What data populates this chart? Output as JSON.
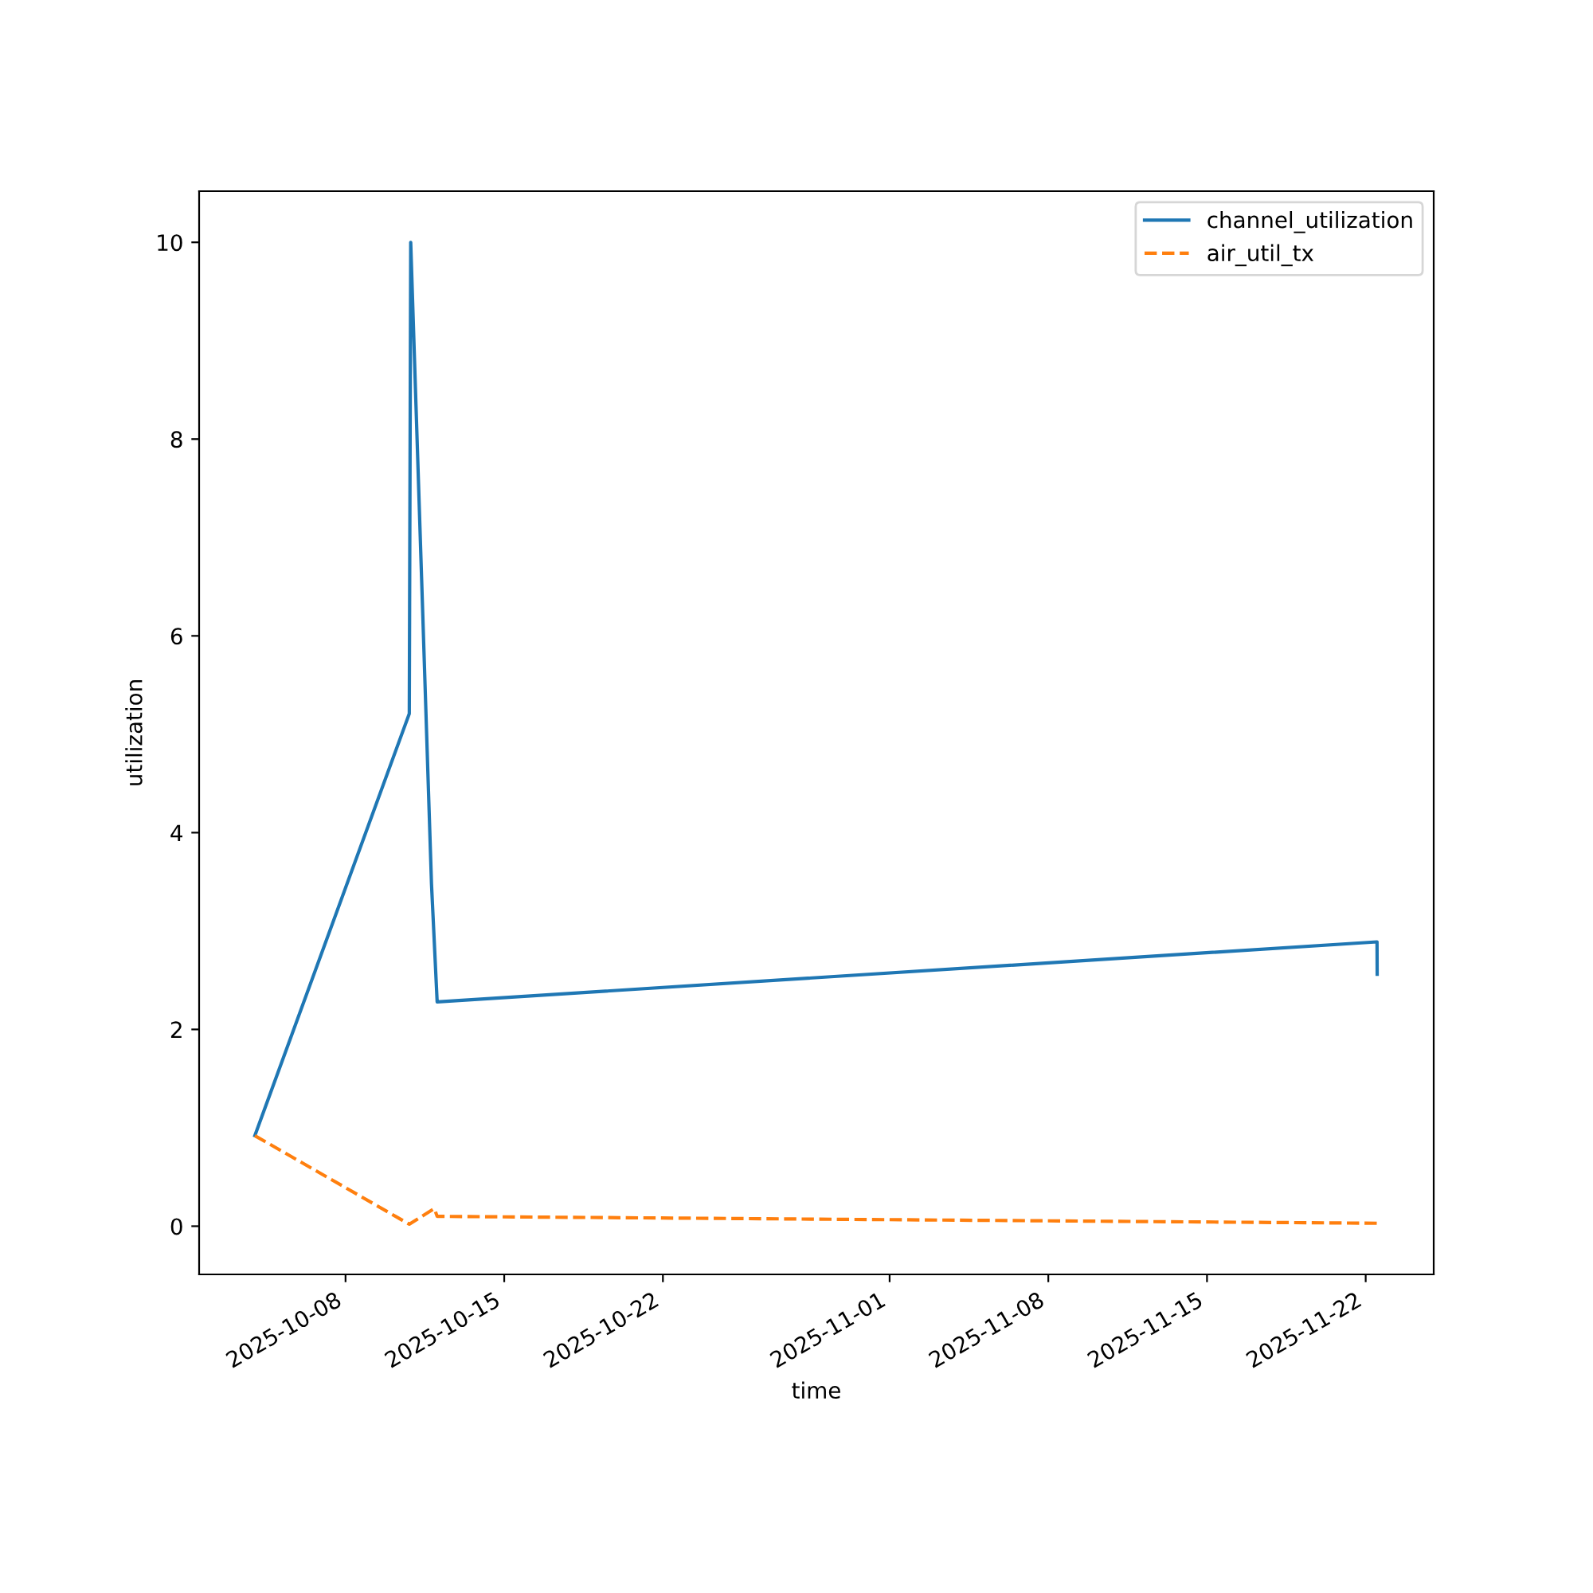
{
  "chart_data": {
    "type": "line",
    "xlabel": "time",
    "ylabel": "utilization",
    "xlim": [
      "2025-10-01T13:00",
      "2025-11-25T00:00"
    ],
    "ylim": [
      -0.49,
      10.52
    ],
    "xticks": [
      "2025-10-08",
      "2025-10-15",
      "2025-10-22",
      "2025-11-01",
      "2025-11-08",
      "2025-11-15",
      "2025-11-22"
    ],
    "yticks": [
      0,
      2,
      4,
      6,
      8,
      10
    ],
    "legend": "top right",
    "grid": false,
    "series": [
      {
        "name": "channel_utilization",
        "color": "#1f77b4",
        "line_style": "solid",
        "x": [
          "2025-10-04T00:00",
          "2025-10-10T19:30",
          "2025-10-10T21:00",
          "2025-10-11T19:00",
          "2025-10-12T01:00",
          "2025-11-22T12:00",
          "2025-11-22T12:10"
        ],
        "values": [
          0.92,
          5.21,
          10.0,
          3.48,
          2.28,
          2.89,
          2.56
        ]
      },
      {
        "name": "air_util_tx",
        "color": "#ff7f0e",
        "line_style": "dashed",
        "x": [
          "2025-10-04T00:00",
          "2025-10-10T19:30",
          "2025-10-11T22:00",
          "2025-10-12T01:00",
          "2025-11-22T12:10"
        ],
        "values": [
          0.92,
          0.02,
          0.18,
          0.1,
          0.03
        ]
      }
    ]
  }
}
